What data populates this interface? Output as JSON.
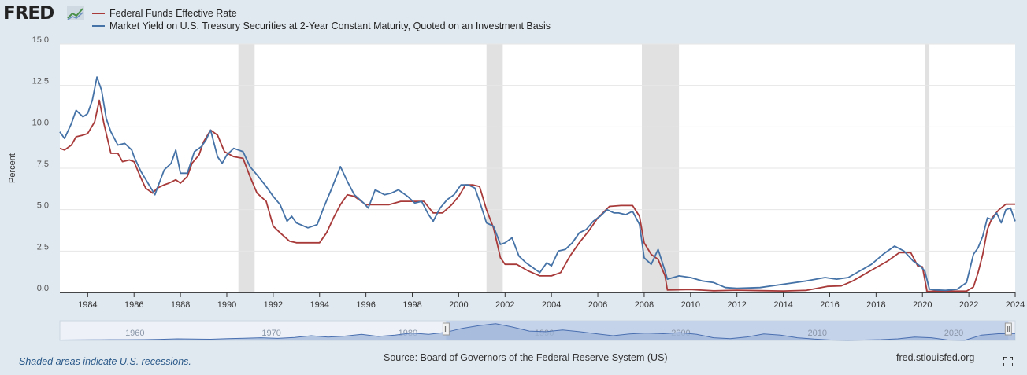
{
  "header": {
    "logo_text": "FRED",
    "logo_icon": "chart-line-icon"
  },
  "footer": {
    "recession_note": "Shaded areas indicate U.S. recessions.",
    "source": "Source: Board of Governors of the Federal Reserve System (US)",
    "url": "fred.stlouisfed.org",
    "fullscreen_icon": "fullscreen-icon"
  },
  "colors": {
    "background": "#e1e9f0",
    "plot_background": "#ffffff",
    "recession_shade": "#e1e1e1",
    "fed_funds": "#a83a3a",
    "treasury_2y": "#4572a7",
    "navigator_fill": "#9fb5d9",
    "navigator_line": "#4a6fb0"
  },
  "chart_data": {
    "type": "line",
    "title": "",
    "xlabel": "",
    "ylabel": "Percent",
    "xlim": [
      1982.8,
      2024.0
    ],
    "ylim": [
      0,
      15
    ],
    "yticks": [
      "0.0",
      "2.5",
      "5.0",
      "7.5",
      "10.0",
      "12.5",
      "15.0"
    ],
    "ytick_values": [
      0,
      2.5,
      5,
      7.5,
      10,
      12.5,
      15
    ],
    "xticks": [
      "1984",
      "1986",
      "1988",
      "1990",
      "1992",
      "1994",
      "1996",
      "1998",
      "2000",
      "2002",
      "2004",
      "2006",
      "2008",
      "2010",
      "2012",
      "2014",
      "2016",
      "2018",
      "2020",
      "2022",
      "2024"
    ],
    "xtick_values": [
      1984,
      1986,
      1988,
      1990,
      1992,
      1994,
      1996,
      1998,
      2000,
      2002,
      2004,
      2006,
      2008,
      2010,
      2012,
      2014,
      2016,
      2018,
      2020,
      2022,
      2024
    ],
    "grid": true,
    "legend_position": "top-left",
    "recessions": [
      [
        1990.5,
        1991.2
      ],
      [
        2001.2,
        2001.9
      ],
      [
        2007.9,
        2009.5
      ],
      [
        2020.1,
        2020.3
      ]
    ],
    "series": [
      {
        "name": "Federal Funds Effective Rate",
        "x": [
          1982.8,
          1983.0,
          1983.3,
          1983.5,
          1983.8,
          1984.0,
          1984.3,
          1984.5,
          1984.7,
          1985.0,
          1985.3,
          1985.5,
          1985.8,
          1986.0,
          1986.3,
          1986.5,
          1986.8,
          1987.0,
          1987.3,
          1987.5,
          1987.8,
          1988.0,
          1988.3,
          1988.5,
          1988.8,
          1989.0,
          1989.3,
          1989.6,
          1989.9,
          1990.3,
          1990.7,
          1991.0,
          1991.3,
          1991.7,
          1992.0,
          1992.3,
          1992.7,
          1993.0,
          1993.5,
          1994.0,
          1994.3,
          1994.6,
          1994.9,
          1995.2,
          1995.5,
          1996.0,
          1996.5,
          1997.0,
          1997.5,
          1998.0,
          1998.5,
          1998.9,
          1999.3,
          1999.7,
          2000.0,
          2000.3,
          2000.6,
          2000.9,
          2001.2,
          2001.5,
          2001.8,
          2002.0,
          2002.5,
          2003.0,
          2003.5,
          2004.0,
          2004.4,
          2004.8,
          2005.2,
          2005.6,
          2006.0,
          2006.5,
          2007.0,
          2007.5,
          2007.8,
          2008.0,
          2008.3,
          2008.6,
          2008.9,
          2009.0,
          2010.0,
          2011.0,
          2012.0,
          2013.0,
          2014.0,
          2015.0,
          2015.9,
          2016.5,
          2017.0,
          2017.5,
          2018.0,
          2018.5,
          2019.0,
          2019.5,
          2019.8,
          2020.0,
          2020.2,
          2020.5,
          2021.0,
          2021.5,
          2021.9,
          2022.2,
          2022.4,
          2022.6,
          2022.8,
          2023.0,
          2023.3,
          2023.6,
          2024.0
        ],
        "values": [
          8.7,
          8.6,
          8.9,
          9.4,
          9.5,
          9.6,
          10.3,
          11.6,
          10.2,
          8.4,
          8.4,
          7.9,
          8.0,
          7.9,
          6.9,
          6.3,
          6.0,
          6.3,
          6.5,
          6.6,
          6.8,
          6.6,
          7.0,
          7.8,
          8.3,
          9.1,
          9.8,
          9.5,
          8.5,
          8.2,
          8.1,
          7.0,
          6.0,
          5.5,
          4.0,
          3.6,
          3.1,
          3.0,
          3.0,
          3.0,
          3.6,
          4.5,
          5.3,
          5.9,
          5.8,
          5.3,
          5.3,
          5.3,
          5.5,
          5.5,
          5.5,
          4.8,
          4.8,
          5.3,
          5.8,
          6.5,
          6.5,
          6.4,
          5.0,
          3.9,
          2.1,
          1.7,
          1.7,
          1.3,
          1.0,
          1.0,
          1.2,
          2.2,
          3.0,
          3.7,
          4.5,
          5.2,
          5.25,
          5.25,
          4.6,
          3.0,
          2.3,
          2.0,
          1.0,
          0.15,
          0.18,
          0.1,
          0.14,
          0.11,
          0.09,
          0.13,
          0.37,
          0.4,
          0.7,
          1.1,
          1.5,
          1.9,
          2.4,
          2.4,
          1.6,
          1.55,
          0.05,
          0.09,
          0.08,
          0.08,
          0.08,
          0.33,
          1.2,
          2.3,
          3.8,
          4.5,
          5.0,
          5.33,
          5.33
        ]
      },
      {
        "name": "Market Yield on U.S. Treasury Securities at 2-Year Constant Maturity, Quoted on an Investment Basis",
        "x": [
          1982.8,
          1983.0,
          1983.3,
          1983.5,
          1983.8,
          1984.0,
          1984.2,
          1984.4,
          1984.6,
          1984.8,
          1985.0,
          1985.3,
          1985.6,
          1985.9,
          1986.0,
          1986.3,
          1986.6,
          1986.9,
          1987.0,
          1987.3,
          1987.6,
          1987.8,
          1988.0,
          1988.3,
          1988.6,
          1988.9,
          1989.1,
          1989.3,
          1989.6,
          1989.8,
          1990.0,
          1990.3,
          1990.7,
          1991.0,
          1991.3,
          1991.7,
          1992.0,
          1992.3,
          1992.6,
          1992.8,
          1993.0,
          1993.5,
          1993.9,
          1994.2,
          1994.5,
          1994.9,
          1995.2,
          1995.5,
          1995.9,
          1996.1,
          1996.4,
          1996.8,
          1997.1,
          1997.4,
          1997.8,
          1998.1,
          1998.4,
          1998.7,
          1998.9,
          1999.2,
          1999.5,
          1999.8,
          2000.1,
          2000.4,
          2000.7,
          2000.9,
          2001.2,
          2001.5,
          2001.8,
          2002.0,
          2002.3,
          2002.6,
          2002.9,
          2003.2,
          2003.5,
          2003.8,
          2004.0,
          2004.3,
          2004.6,
          2004.9,
          2005.2,
          2005.5,
          2005.8,
          2006.1,
          2006.4,
          2006.7,
          2006.9,
          2007.2,
          2007.5,
          2007.8,
          2008.0,
          2008.3,
          2008.6,
          2008.9,
          2009.0,
          2009.5,
          2010.0,
          2010.5,
          2011.0,
          2011.5,
          2012.0,
          2013.0,
          2014.0,
          2015.0,
          2015.8,
          2016.3,
          2016.8,
          2017.3,
          2017.8,
          2018.3,
          2018.8,
          2019.2,
          2019.6,
          2019.9,
          2020.1,
          2020.3,
          2020.6,
          2021.0,
          2021.5,
          2021.9,
          2022.2,
          2022.4,
          2022.6,
          2022.8,
          2023.0,
          2023.2,
          2023.4,
          2023.6,
          2023.8,
          2024.0
        ],
        "values": [
          9.7,
          9.3,
          10.2,
          11.0,
          10.6,
          10.8,
          11.6,
          13.0,
          12.2,
          10.5,
          9.7,
          8.9,
          9.0,
          8.6,
          8.2,
          7.3,
          6.6,
          5.9,
          6.3,
          7.4,
          7.8,
          8.6,
          7.2,
          7.2,
          8.5,
          8.8,
          9.2,
          9.8,
          8.2,
          7.8,
          8.3,
          8.7,
          8.5,
          7.6,
          7.1,
          6.4,
          5.8,
          5.3,
          4.3,
          4.6,
          4.2,
          3.9,
          4.1,
          5.2,
          6.2,
          7.6,
          6.7,
          5.9,
          5.4,
          5.1,
          6.2,
          5.9,
          6.0,
          6.2,
          5.8,
          5.4,
          5.5,
          4.7,
          4.3,
          5.1,
          5.6,
          5.9,
          6.5,
          6.5,
          6.3,
          5.5,
          4.2,
          4.0,
          2.9,
          3.0,
          3.3,
          2.2,
          1.8,
          1.5,
          1.2,
          1.8,
          1.6,
          2.5,
          2.6,
          3.0,
          3.6,
          3.8,
          4.3,
          4.6,
          5.0,
          4.8,
          4.8,
          4.7,
          4.9,
          4.1,
          2.1,
          1.7,
          2.6,
          1.3,
          0.8,
          1.0,
          0.9,
          0.7,
          0.6,
          0.3,
          0.25,
          0.3,
          0.5,
          0.7,
          0.9,
          0.8,
          0.9,
          1.3,
          1.7,
          2.3,
          2.8,
          2.5,
          1.9,
          1.6,
          1.3,
          0.2,
          0.15,
          0.13,
          0.2,
          0.6,
          2.3,
          2.7,
          3.4,
          4.5,
          4.4,
          4.8,
          4.2,
          5.0,
          5.1,
          4.3
        ]
      }
    ]
  },
  "navigator": {
    "tick_labels": [
      "1960",
      "1970",
      "1980",
      "1990",
      "2000",
      "2010",
      "2020"
    ],
    "tick_values": [
      1960,
      1970,
      1980,
      1990,
      2000,
      2010,
      2020
    ],
    "range": [
      1954.5,
      2024.5
    ],
    "selected": [
      1982.8,
      2024.0
    ],
    "handle_icon": "drag-handle-icon",
    "profile": [
      0.3,
      0.35,
      0.4,
      0.5,
      0.55,
      0.6,
      0.8,
      1.2,
      1.0,
      0.9,
      1.3,
      1.6,
      2.0,
      1.5,
      2.2,
      3.5,
      2.5,
      3.2,
      4.5,
      3.0,
      4.0,
      5.5,
      4.5,
      6.0,
      9.0,
      11.0,
      12.5,
      10.0,
      7.0,
      6.5,
      7.8,
      6.5,
      5.0,
      3.5,
      4.8,
      5.5,
      5.0,
      5.8,
      4.5,
      2.0,
      1.3,
      2.6,
      4.8,
      4.0,
      2.0,
      1.0,
      0.3,
      0.2,
      0.3,
      0.6,
      1.2,
      2.5,
      2.0,
      0.3,
      0.2,
      4.0,
      5.0,
      5.1
    ]
  }
}
